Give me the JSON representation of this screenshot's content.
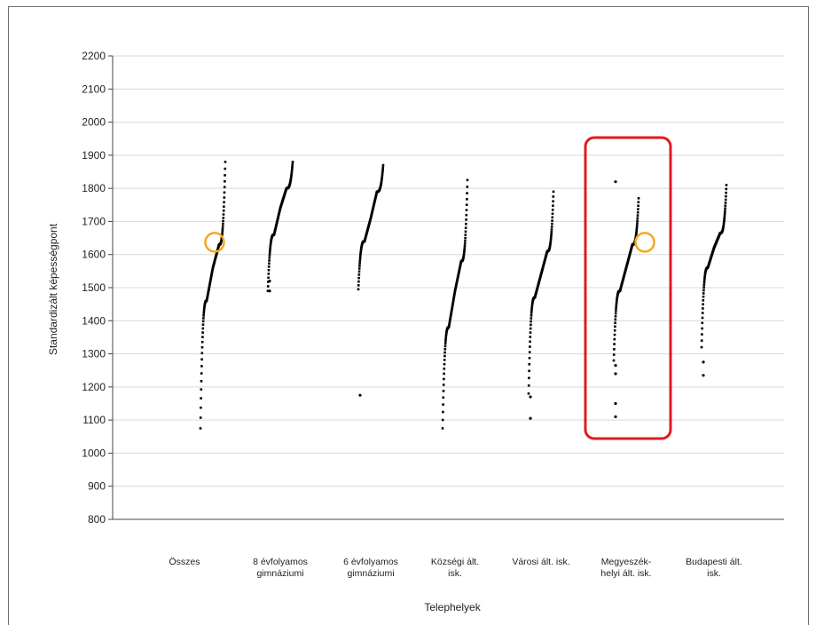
{
  "chart_data": {
    "type": "scatter",
    "title": "",
    "xlabel": "Telephelyek",
    "ylabel": "Standardizált képességpont",
    "ylim": [
      800,
      2200
    ],
    "yticks": [
      800,
      900,
      1000,
      1100,
      1200,
      1300,
      1400,
      1500,
      1600,
      1700,
      1800,
      1900,
      2000,
      2100,
      2200
    ],
    "grid": true,
    "categories": [
      {
        "label_lines": [
          "Összes"
        ],
        "min": 1075,
        "q1": 1460,
        "median": 1560,
        "q3": 1630,
        "max": 1880,
        "outliers": [],
        "marker": 1645
      },
      {
        "label_lines": [
          "8 évfolyamos",
          "gimnáziumi"
        ],
        "min": 1490,
        "q1": 1660,
        "median": 1740,
        "q3": 1800,
        "max": 1880,
        "outliers": [
          1490,
          1520
        ]
      },
      {
        "label_lines": [
          "6 évfolyamos",
          "gimnáziumi"
        ],
        "min": 1495,
        "q1": 1640,
        "median": 1710,
        "q3": 1790,
        "max": 1870,
        "outliers": [
          1175
        ]
      },
      {
        "label_lines": [
          "Községi ált.",
          "isk."
        ],
        "min": 1075,
        "q1": 1380,
        "median": 1490,
        "q3": 1580,
        "max": 1825,
        "outliers": []
      },
      {
        "label_lines": [
          "Városi ált. isk."
        ],
        "min": 1180,
        "q1": 1470,
        "median": 1540,
        "q3": 1610,
        "max": 1790,
        "outliers": [
          1105,
          1170
        ]
      },
      {
        "label_lines": [
          "Megyeszék-",
          "helyi ált. isk."
        ],
        "min": 1280,
        "q1": 1490,
        "median": 1560,
        "q3": 1630,
        "max": 1770,
        "outliers": [
          1110,
          1150,
          1240,
          1265,
          1820
        ],
        "marker": 1645,
        "highlighted": true
      },
      {
        "label_lines": [
          "Budapesti ált.",
          "isk."
        ],
        "min": 1320,
        "q1": 1560,
        "median": 1620,
        "q3": 1665,
        "max": 1810,
        "outliers": [
          1235,
          1275
        ]
      }
    ],
    "colors": {
      "points": "#000000",
      "grid": "#d9d9d9",
      "axis": "#444444",
      "marker": "#f5a623",
      "highlight": "#e01b1b"
    }
  }
}
